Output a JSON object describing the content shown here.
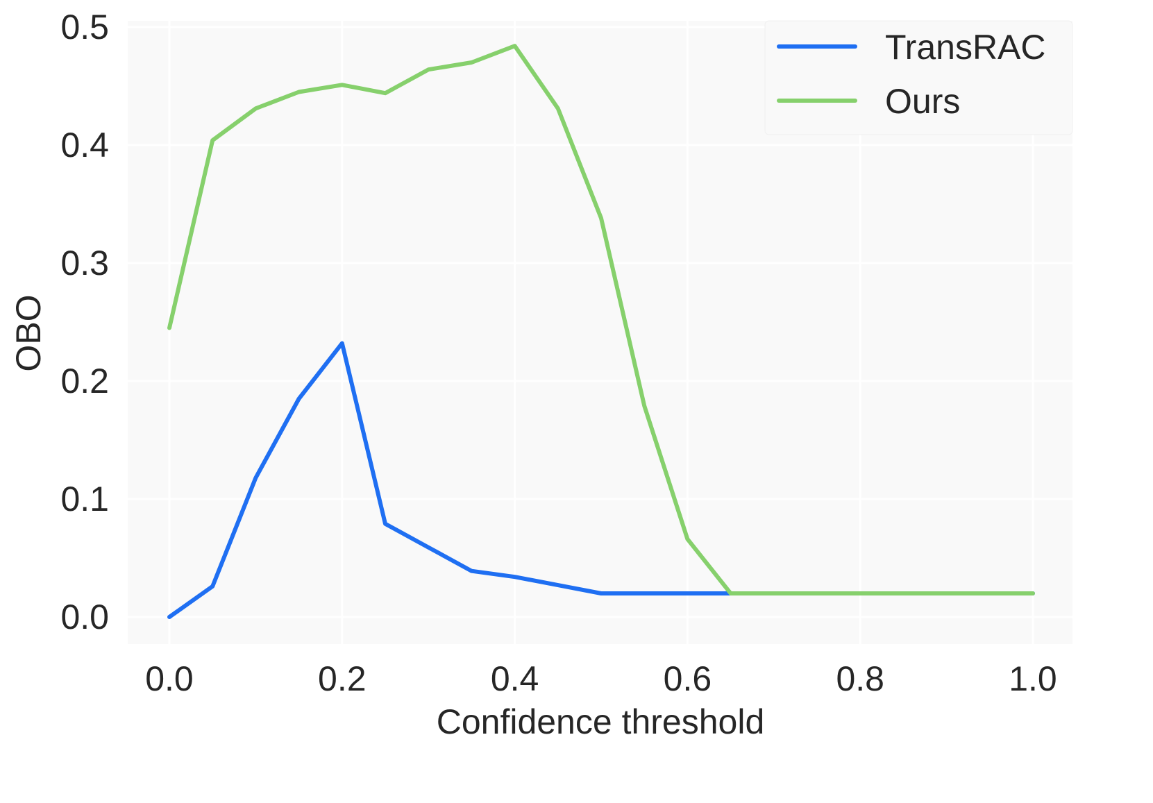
{
  "chart_data": {
    "type": "line",
    "title": "",
    "xlabel": "Confidence threshold",
    "ylabel": "OBO",
    "xlim": [
      -0.05,
      1.05
    ],
    "ylim": [
      -0.022,
      0.505
    ],
    "xticks": [
      "0.0",
      "0.2",
      "0.4",
      "0.6",
      "0.8",
      "1.0"
    ],
    "yticks": [
      "0.0",
      "0.1",
      "0.2",
      "0.3",
      "0.4",
      "0.5"
    ],
    "grid": true,
    "legend_position": "top-right",
    "x": [
      0.0,
      0.05,
      0.1,
      0.15,
      0.2,
      0.25,
      0.3,
      0.35,
      0.4,
      0.45,
      0.5,
      0.55,
      0.6,
      0.65,
      0.7,
      0.75,
      0.8,
      0.85,
      0.9,
      0.95,
      1.0
    ],
    "series": [
      {
        "name": "TransRAC",
        "color": "#1f6ff2",
        "values": [
          0.0,
          0.026,
          0.118,
          0.185,
          0.232,
          0.079,
          0.059,
          0.039,
          0.034,
          0.027,
          0.02,
          0.02,
          0.02,
          0.02,
          0.02,
          0.02,
          0.02,
          0.02,
          0.02,
          0.02,
          0.02
        ]
      },
      {
        "name": "Ours",
        "color": "#86d06c",
        "values": [
          0.245,
          0.404,
          0.431,
          0.445,
          0.451,
          0.444,
          0.464,
          0.47,
          0.484,
          0.431,
          0.338,
          0.179,
          0.066,
          0.02,
          0.02,
          0.02,
          0.02,
          0.02,
          0.02,
          0.02,
          0.02
        ]
      }
    ]
  }
}
